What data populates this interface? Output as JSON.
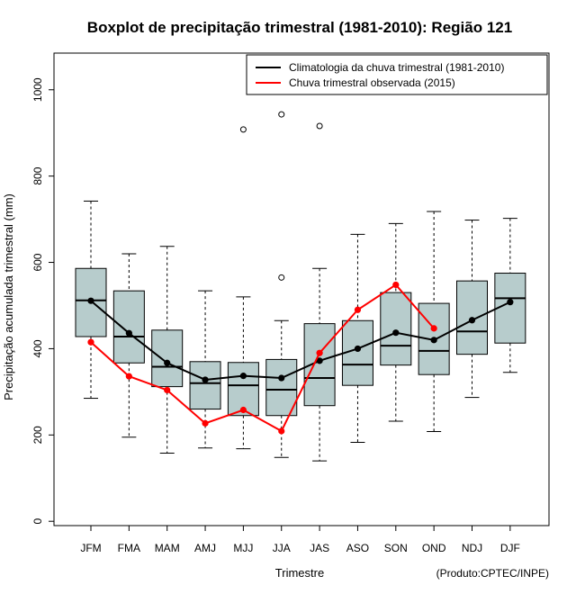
{
  "chart_data": {
    "type": "boxplot",
    "title": "Boxplot de precipitação trimestral (1981-2010): Região 121",
    "xlabel": "Trimestre",
    "ylabel": "Precipitação acumulada trimestral (mm)",
    "ylim": [
      -10,
      1085
    ],
    "yticks": [
      0,
      200,
      400,
      600,
      800,
      1000
    ],
    "categories": [
      "JFM",
      "FMA",
      "MAM",
      "AMJ",
      "MJJ",
      "JJA",
      "JAS",
      "ASO",
      "SON",
      "OND",
      "NDJ",
      "DJF"
    ],
    "boxes": [
      {
        "min": 285,
        "q1": 428,
        "median": 512,
        "q3": 586,
        "max": 742,
        "outliers": []
      },
      {
        "min": 195,
        "q1": 367,
        "median": 428,
        "q3": 534,
        "max": 620,
        "outliers": []
      },
      {
        "min": 158,
        "q1": 312,
        "median": 358,
        "q3": 443,
        "max": 637,
        "outliers": []
      },
      {
        "min": 170,
        "q1": 260,
        "median": 320,
        "q3": 370,
        "max": 534,
        "outliers": []
      },
      {
        "min": 168,
        "q1": 245,
        "median": 315,
        "q3": 368,
        "max": 520,
        "outliers": [
          908
        ]
      },
      {
        "min": 148,
        "q1": 245,
        "median": 305,
        "q3": 375,
        "max": 465,
        "outliers": [
          565,
          943
        ]
      },
      {
        "min": 140,
        "q1": 268,
        "median": 332,
        "q3": 458,
        "max": 586,
        "outliers": [
          916
        ]
      },
      {
        "min": 183,
        "q1": 315,
        "median": 363,
        "q3": 465,
        "max": 665,
        "outliers": []
      },
      {
        "min": 232,
        "q1": 362,
        "median": 407,
        "q3": 530,
        "max": 690,
        "outliers": []
      },
      {
        "min": 208,
        "q1": 340,
        "median": 395,
        "q3": 505,
        "max": 718,
        "outliers": []
      },
      {
        "min": 287,
        "q1": 387,
        "median": 440,
        "q3": 557,
        "max": 698,
        "outliers": []
      },
      {
        "min": 345,
        "q1": 413,
        "median": 517,
        "q3": 575,
        "max": 702,
        "outliers": []
      }
    ],
    "series": [
      {
        "name": "Climatologia da chuva trimestral (1981-2010)",
        "color": "#000000",
        "values": [
          511,
          436,
          367,
          328,
          337,
          332,
          372,
          400,
          437,
          420,
          466,
          508
        ]
      },
      {
        "name": "Chuva trimestral observada (2015)",
        "color": "#ff0000",
        "values": [
          415,
          336,
          304,
          227,
          258,
          209,
          390,
          490,
          548,
          447,
          null,
          null
        ]
      }
    ],
    "box_color": "#b7cccc",
    "legend_position": "top-right",
    "credit": "(Produto:CPTEC/INPE)"
  }
}
